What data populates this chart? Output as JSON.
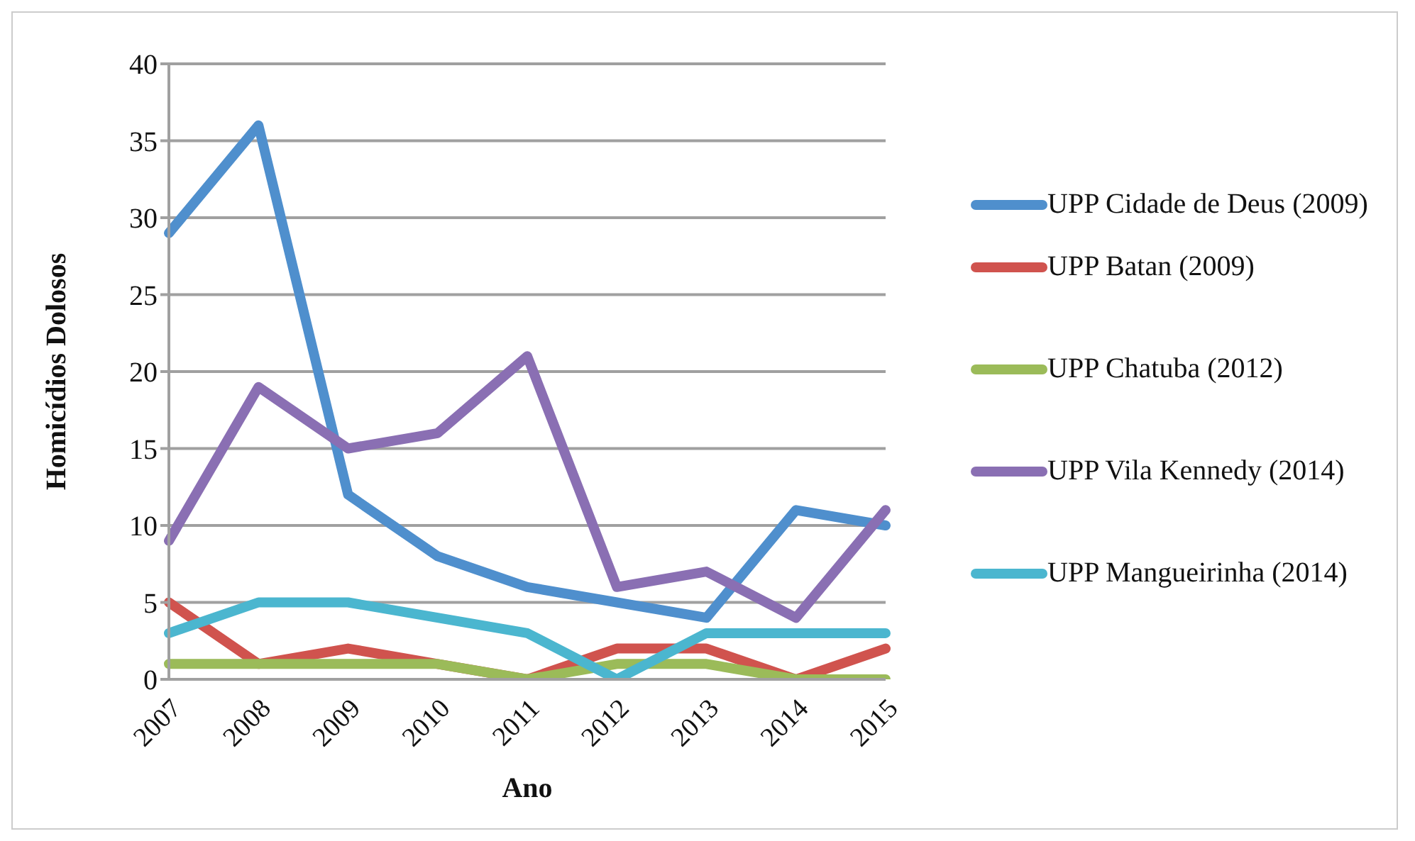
{
  "chart_data": {
    "type": "line",
    "xlabel": "Ano",
    "ylabel": "Homicídios Dolosos",
    "categories": [
      "2007",
      "2008",
      "2009",
      "2010",
      "2011",
      "2012",
      "2013",
      "2014",
      "2015"
    ],
    "series": [
      {
        "name": "UPP Cidade de Deus (2009)",
        "color": "#4f8fcd",
        "values": [
          29,
          36,
          12,
          8,
          6,
          5,
          4,
          11,
          10
        ]
      },
      {
        "name": "UPP Batan (2009)",
        "color": "#d0534e",
        "values": [
          5,
          1,
          2,
          1,
          0,
          2,
          2,
          0,
          2
        ]
      },
      {
        "name": "UPP Chatuba (2012)",
        "color": "#9bbb59",
        "values": [
          1,
          1,
          1,
          1,
          0,
          1,
          1,
          0,
          0
        ]
      },
      {
        "name": "UPP Vila Kennedy (2014)",
        "color": "#8a6fb3",
        "values": [
          9,
          19,
          15,
          16,
          21,
          6,
          7,
          4,
          11
        ]
      },
      {
        "name": "UPP Mangueirinha (2014)",
        "color": "#4bb6cf",
        "values": [
          3,
          5,
          5,
          4,
          3,
          0,
          3,
          3,
          3
        ]
      }
    ],
    "ylim": [
      0,
      40
    ],
    "yticks": [
      0,
      5,
      10,
      15,
      20,
      25,
      30,
      35,
      40
    ],
    "grid": "y",
    "legend": "right",
    "marker": "none",
    "line_style": "solid"
  }
}
